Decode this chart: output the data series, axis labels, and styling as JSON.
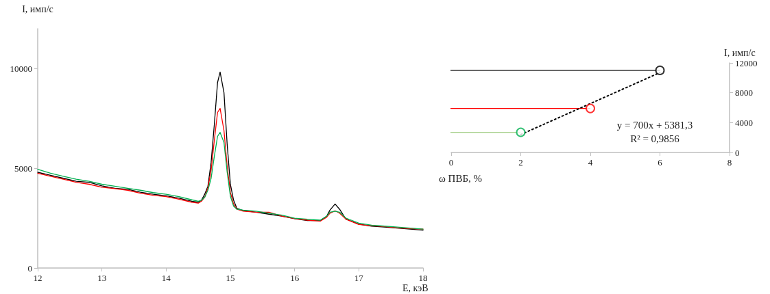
{
  "chart_data": [
    {
      "type": "line",
      "xlabel": "Е, кэВ",
      "ylabel": "I, имп/с",
      "xlim": [
        12,
        18
      ],
      "xticks": [
        12,
        13,
        14,
        15,
        16,
        17,
        18
      ],
      "ylim": [
        0,
        12000
      ],
      "yticks": [
        0,
        5000,
        10000
      ],
      "marker": "none",
      "line_style": "solid",
      "x": [
        12,
        12.2,
        12.4,
        12.6,
        12.8,
        13,
        13.2,
        13.4,
        13.6,
        13.8,
        14,
        14.2,
        14.4,
        14.5,
        14.55,
        14.6,
        14.65,
        14.7,
        14.75,
        14.8,
        14.84,
        14.9,
        14.95,
        15,
        15.05,
        15.1,
        15.2,
        15.4,
        15.6,
        15.8,
        16,
        16.2,
        16.4,
        16.5,
        16.55,
        16.63,
        16.7,
        16.8,
        17,
        17.2,
        17.4,
        17.6,
        17.8,
        18
      ],
      "series": [
        {
          "color": "#000000",
          "values": [
            4800,
            4650,
            4500,
            4350,
            4300,
            4120,
            4000,
            3950,
            3800,
            3700,
            3620,
            3500,
            3350,
            3300,
            3400,
            3700,
            4100,
            5300,
            7200,
            9300,
            9830,
            8800,
            6200,
            4200,
            3400,
            3000,
            2880,
            2800,
            2700,
            2600,
            2470,
            2380,
            2380,
            2600,
            2900,
            3210,
            2950,
            2450,
            2200,
            2100,
            2050,
            2000,
            1950,
            1900
          ]
        },
        {
          "color": "#ff0000",
          "values": [
            4750,
            4600,
            4450,
            4300,
            4200,
            4050,
            3980,
            3900,
            3750,
            3650,
            3580,
            3450,
            3300,
            3250,
            3350,
            3550,
            4000,
            4900,
            6400,
            7800,
            8000,
            6900,
            5100,
            3800,
            3200,
            2950,
            2850,
            2800,
            2800,
            2600,
            2480,
            2400,
            2350,
            2550,
            2750,
            2870,
            2750,
            2450,
            2180,
            2120,
            2080,
            2020,
            1980,
            1950
          ]
        },
        {
          "color": "#00b050",
          "values": [
            4950,
            4750,
            4600,
            4450,
            4350,
            4200,
            4100,
            4000,
            3900,
            3780,
            3700,
            3580,
            3420,
            3350,
            3400,
            3550,
            3900,
            4500,
            5600,
            6600,
            6800,
            6300,
            4800,
            3600,
            3100,
            2950,
            2900,
            2850,
            2750,
            2650,
            2500,
            2450,
            2400,
            2600,
            2800,
            2850,
            2800,
            2500,
            2250,
            2150,
            2100,
            2050,
            2000,
            1950
          ]
        }
      ]
    },
    {
      "type": "scatter",
      "xlabel": "ω ПВБ, %",
      "ylabel": "I, имп/с",
      "xlim": [
        0,
        8
      ],
      "xticks": [
        0,
        2,
        4,
        6,
        8
      ],
      "ylim": [
        0,
        12000
      ],
      "yticks": [
        0,
        4000,
        8000,
        12000
      ],
      "marker": "circle",
      "series": [
        {
          "type": "scatter",
          "x": [
            2,
            4,
            6
          ],
          "values": [
            2700,
            5900,
            11000
          ],
          "colors": [
            "#00b050",
            "#ff0000",
            "#000000"
          ]
        },
        {
          "type": "line",
          "x": [
            2,
            6
          ],
          "values": [
            2400,
            10700
          ],
          "color": "#000000",
          "line_style": "dotted",
          "marker": "none"
        }
      ],
      "ref_lines": [
        {
          "axis": "y",
          "value": 11000,
          "color": "#000000"
        },
        {
          "axis": "y",
          "value": 5900,
          "color": "#ff0000"
        },
        {
          "axis": "y",
          "value": 2700,
          "color": "#a9d18e"
        }
      ],
      "annotations": [
        "y = 700x + 5381,3",
        "R² = 0,9856"
      ]
    }
  ]
}
